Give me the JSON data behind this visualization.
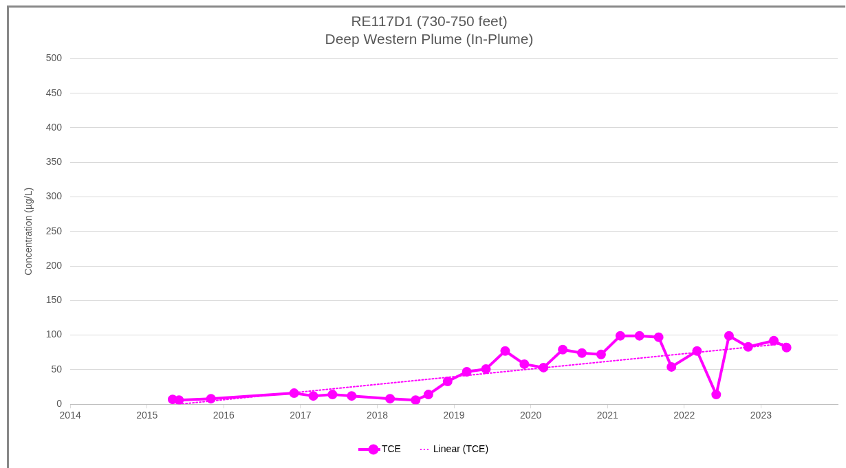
{
  "chart_data": {
    "type": "line",
    "title": "RE117D1 (730-750 feet)",
    "subtitle": "Deep Western Plume (In-Plume)",
    "ylabel": "Concentration (µg/L)",
    "xlim": [
      "2014",
      "2024"
    ],
    "xticks": [
      "2014",
      "2015",
      "2016",
      "2017",
      "2018",
      "2019",
      "2020",
      "2021",
      "2022",
      "2023"
    ],
    "ylim": [
      0,
      500
    ],
    "yticks": [
      0,
      50,
      100,
      150,
      200,
      250,
      300,
      350,
      400,
      450,
      500
    ],
    "grid": "y",
    "legend": "bottom",
    "series": [
      {
        "name": "TCE",
        "color": "#ff00ff",
        "marker": "circle",
        "line_style": "solid",
        "x": [
          "2015-05",
          "2015-06",
          "2015-11",
          "2016-12",
          "2017-03",
          "2017-06",
          "2017-09",
          "2018-03",
          "2018-07",
          "2018-09",
          "2018-12",
          "2019-03",
          "2019-06",
          "2019-09",
          "2019-12",
          "2020-03",
          "2020-06",
          "2020-09",
          "2020-12",
          "2021-03",
          "2021-06",
          "2021-09",
          "2021-11",
          "2022-03",
          "2022-06",
          "2022-08",
          "2022-11",
          "2023-03",
          "2023-05"
        ],
        "values": [
          7,
          6,
          8,
          16,
          12,
          14,
          12,
          8,
          6,
          14,
          33,
          47,
          51,
          77,
          58,
          53,
          79,
          74,
          72,
          99,
          99,
          97,
          54,
          77,
          14,
          99,
          83,
          92,
          82
        ]
      },
      {
        "name": "Linear (TCE)",
        "color": "#ff00ff",
        "marker": "none",
        "line_style": "dotted",
        "x": [
          "2015-06",
          "2023-05"
        ],
        "values": [
          0,
          88
        ]
      }
    ]
  }
}
